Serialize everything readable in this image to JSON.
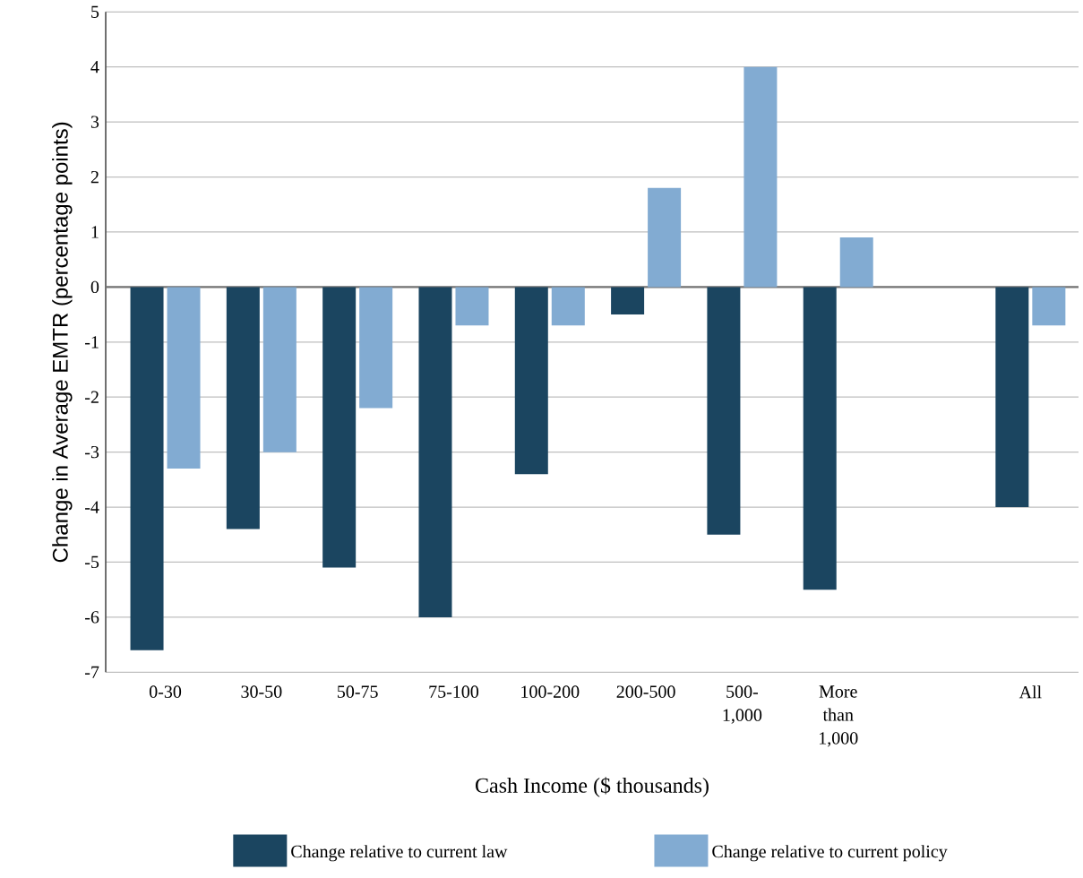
{
  "chart_data": {
    "type": "bar",
    "xlabel": "Cash Income ($ thousands)",
    "ylabel": "Change in Average EMTR (percentage points)",
    "categories": [
      "0-30",
      "30-50",
      "50-75",
      "75-100",
      "100-200",
      "200-500",
      "500-1,000",
      "More than 1,000",
      null,
      "All"
    ],
    "series": [
      {
        "name": "Change relative to current law",
        "color": "#1b4560",
        "values": [
          -6.6,
          -4.4,
          -5.1,
          -6.0,
          -3.4,
          -0.5,
          -4.5,
          -5.5,
          null,
          -4.0
        ]
      },
      {
        "name": "Change relative to current policy",
        "color": "#82abd2",
        "values": [
          -3.3,
          -3.0,
          -2.2,
          -0.7,
          -0.7,
          1.8,
          4.0,
          0.9,
          null,
          -0.7
        ]
      }
    ],
    "ylim": [
      -7,
      5
    ],
    "yticks": [
      -7,
      -6,
      -5,
      -4,
      -3,
      -2,
      -1,
      0,
      1,
      2,
      3,
      4,
      5
    ],
    "grid": "y",
    "legend": "bottom"
  }
}
